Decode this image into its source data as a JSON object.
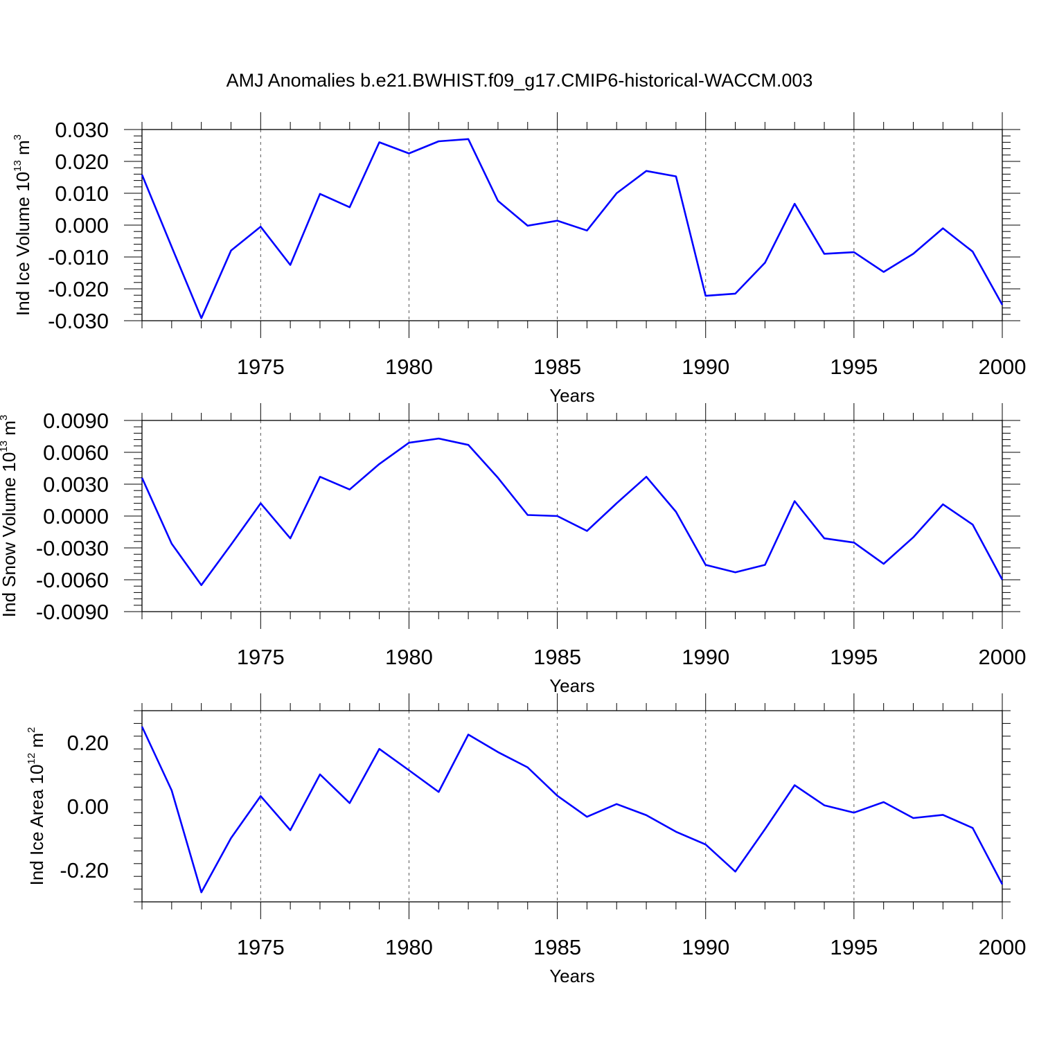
{
  "title": "AMJ Anomalies b.e21.BWHIST.f09_g17.CMIP6-historical-WACCM.003",
  "colors": {
    "series": "#0000ff",
    "axis": "#000000",
    "grid": "#555555"
  },
  "chart_data": [
    {
      "type": "line",
      "ylabel_main": "Ind Ice Volume 10",
      "ylabel_exp": "13",
      "ylabel_unit": " m",
      "ylabel_unit_exp": "3",
      "xlabel": "Years",
      "xlim": [
        1971,
        2000
      ],
      "ylim": [
        -0.03,
        0.03
      ],
      "yticks": [
        -0.03,
        -0.02,
        -0.01,
        0.0,
        0.01,
        0.02,
        0.03
      ],
      "ytick_labels": [
        "-0.030",
        "-0.020",
        "-0.010",
        "0.000",
        "0.010",
        "0.020",
        "0.030"
      ],
      "xticks": [
        1975,
        1980,
        1985,
        1990,
        1995,
        2000
      ],
      "xtick_labels": [
        "1975",
        "1980",
        "1985",
        "1990",
        "1995",
        "2000"
      ],
      "grid_x": true,
      "x": [
        1971,
        1972,
        1973,
        1974,
        1975,
        1976,
        1977,
        1978,
        1979,
        1980,
        1981,
        1982,
        1983,
        1984,
        1985,
        1986,
        1987,
        1988,
        1989,
        1990,
        1991,
        1992,
        1993,
        1994,
        1995,
        1996,
        1997,
        1998,
        1999,
        2000
      ],
      "y": [
        0.0158,
        -0.0068,
        -0.0292,
        -0.008,
        -0.0005,
        -0.0125,
        0.0098,
        0.0056,
        0.026,
        0.0225,
        0.0263,
        0.027,
        0.0076,
        -0.0002,
        0.0014,
        -0.0017,
        0.01,
        0.017,
        0.0153,
        -0.0222,
        -0.0215,
        -0.0118,
        0.0067,
        -0.009,
        -0.0085,
        -0.0147,
        -0.009,
        -0.001,
        -0.0083,
        -0.025
      ]
    },
    {
      "type": "line",
      "ylabel_main": "Ind Snow Volume 10",
      "ylabel_exp": "13",
      "ylabel_unit": " m",
      "ylabel_unit_exp": "3",
      "xlabel": "Years",
      "xlim": [
        1971,
        2000
      ],
      "ylim": [
        -0.009,
        0.009
      ],
      "yticks": [
        -0.009,
        -0.006,
        -0.003,
        0.0,
        0.003,
        0.006,
        0.009
      ],
      "ytick_labels": [
        "-0.0090",
        "-0.0060",
        "-0.0030",
        "0.0000",
        "0.0030",
        "0.0060",
        "0.0090"
      ],
      "xticks": [
        1975,
        1980,
        1985,
        1990,
        1995,
        2000
      ],
      "xtick_labels": [
        "1975",
        "1980",
        "1985",
        "1990",
        "1995",
        "2000"
      ],
      "grid_x": true,
      "x": [
        1971,
        1972,
        1973,
        1974,
        1975,
        1976,
        1977,
        1978,
        1979,
        1980,
        1981,
        1982,
        1983,
        1984,
        1985,
        1986,
        1987,
        1988,
        1989,
        1990,
        1991,
        1992,
        1993,
        1994,
        1995,
        1996,
        1997,
        1998,
        1999,
        2000
      ],
      "y": [
        0.0036,
        -0.0026,
        -0.0065,
        -0.0027,
        0.0012,
        -0.0021,
        0.0037,
        0.0025,
        0.0049,
        0.0069,
        0.0073,
        0.0067,
        0.0036,
        0.0001,
        0.0,
        -0.0014,
        0.0012,
        0.0037,
        0.0004,
        -0.0046,
        -0.0053,
        -0.0046,
        0.0014,
        -0.0021,
        -0.0025,
        -0.0045,
        -0.002,
        0.0011,
        -0.0008,
        -0.006
      ]
    },
    {
      "type": "line",
      "ylabel_main": "Ind Ice Area 10",
      "ylabel_exp": "12",
      "ylabel_unit": " m",
      "ylabel_unit_exp": "2",
      "xlabel": "Years",
      "xlim": [
        1971,
        2000
      ],
      "ylim": [
        -0.3,
        0.3
      ],
      "yticks": [
        -0.2,
        0.0,
        0.2
      ],
      "ytick_labels": [
        "-0.20",
        "0.00",
        "0.20"
      ],
      "xticks": [
        1975,
        1980,
        1985,
        1990,
        1995,
        2000
      ],
      "xtick_labels": [
        "1975",
        "1980",
        "1985",
        "1990",
        "1995",
        "2000"
      ],
      "grid_x": true,
      "x": [
        1971,
        1972,
        1973,
        1974,
        1975,
        1976,
        1977,
        1978,
        1979,
        1980,
        1981,
        1982,
        1983,
        1984,
        1985,
        1986,
        1987,
        1988,
        1989,
        1990,
        1991,
        1992,
        1993,
        1994,
        1995,
        1996,
        1997,
        1998,
        1999,
        2000
      ],
      "y": [
        0.25,
        0.05,
        -0.27,
        -0.1,
        0.032,
        -0.075,
        0.1,
        0.01,
        0.18,
        0.113,
        0.045,
        0.225,
        0.17,
        0.122,
        0.033,
        -0.033,
        0.007,
        -0.028,
        -0.08,
        -0.12,
        -0.205,
        -0.072,
        0.066,
        0.003,
        -0.02,
        0.013,
        -0.037,
        -0.027,
        -0.068,
        -0.245
      ]
    }
  ]
}
